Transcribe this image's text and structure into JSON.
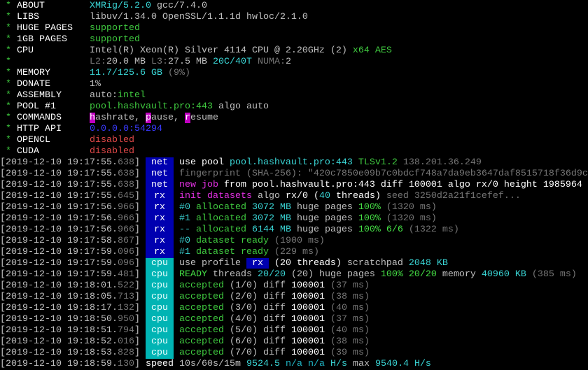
{
  "colors": {
    "tag_blue": "#0000b0",
    "tag_cyan": "#00b4b4",
    "cyan": "#3ad6d6",
    "green": "#3fc93f",
    "magenta": "#e030e0",
    "red": "#e04848",
    "gray": "#767676"
  },
  "header": [
    {
      "label": "ABOUT",
      "segs": [
        {
          "t": "XMRig/5.2.0",
          "c": "c"
        },
        {
          "t": " gcc/7.4.0",
          "c": "w"
        }
      ]
    },
    {
      "label": "LIBS",
      "segs": [
        {
          "t": "libuv/1.34.0 OpenSSL/1.1.1d hwloc/2.1.0",
          "c": "w"
        }
      ]
    },
    {
      "label": "HUGE PAGES",
      "segs": [
        {
          "t": "supported",
          "c": "g"
        }
      ]
    },
    {
      "label": "1GB PAGES",
      "segs": [
        {
          "t": "supported",
          "c": "g"
        }
      ]
    },
    {
      "label": "CPU",
      "segs": [
        {
          "t": "Intel(R) Xeon(R) Silver 4114 CPU @ 2.20GHz (2)",
          "c": "w"
        },
        {
          "t": " x64 AES",
          "c": "g"
        }
      ]
    },
    {
      "label": "",
      "segs": [
        {
          "t": "L2:",
          "c": "gr"
        },
        {
          "t": "20.0 MB ",
          "c": "w"
        },
        {
          "t": "L3:",
          "c": "gr"
        },
        {
          "t": "27.5 MB ",
          "c": "w"
        },
        {
          "t": "20C/40T",
          "c": "c"
        },
        {
          "t": " NUMA:",
          "c": "gr"
        },
        {
          "t": "2",
          "c": "w"
        }
      ]
    },
    {
      "label": "MEMORY",
      "segs": [
        {
          "t": "11.7/125.6 GB",
          "c": "c"
        },
        {
          "t": " (9%)",
          "c": "gr"
        }
      ]
    },
    {
      "label": "DONATE",
      "segs": [
        {
          "t": "1%",
          "c": "w"
        }
      ]
    },
    {
      "label": "ASSEMBLY",
      "segs": [
        {
          "t": "auto:",
          "c": "w"
        },
        {
          "t": "intel",
          "c": "g"
        }
      ]
    },
    {
      "label": "POOL #1",
      "segs": [
        {
          "t": "pool.hashvault.pro:443",
          "c": "g"
        },
        {
          "t": " algo auto",
          "c": "w"
        }
      ]
    },
    {
      "label": "COMMANDS",
      "segs": [
        {
          "t": "h",
          "c": "mbg"
        },
        {
          "t": "ashrate, ",
          "c": "w"
        },
        {
          "t": "p",
          "c": "mbg"
        },
        {
          "t": "ause, ",
          "c": "w"
        },
        {
          "t": "r",
          "c": "mbg"
        },
        {
          "t": "esume",
          "c": "w"
        }
      ]
    },
    {
      "label": "HTTP API",
      "segs": [
        {
          "t": "0.0.0.0:54294",
          "c": "b"
        }
      ]
    },
    {
      "label": "OPENCL",
      "segs": [
        {
          "t": "disabled",
          "c": "r"
        }
      ]
    },
    {
      "label": "CUDA",
      "segs": [
        {
          "t": "disabled",
          "c": "r"
        }
      ]
    }
  ],
  "log": [
    {
      "ts": "[2019-12-10 19:17:55.",
      "ms": "638",
      "tag": "net",
      "segs": [
        {
          "t": "use pool ",
          "c": "W"
        },
        {
          "t": "pool.hashvault.pro:443 ",
          "c": "c"
        },
        {
          "t": "TLSv1.2 ",
          "c": "g"
        },
        {
          "t": "138.201.36.249",
          "c": "gr"
        }
      ]
    },
    {
      "ts": "[2019-12-10 19:17:55.",
      "ms": "638",
      "tag": "net",
      "segs": [
        {
          "t": "fingerprint (SHA-256): \"420c7850e09b7c0bdcf748a7da9eb3647daf8515718f36d9c",
          "c": "gr"
        }
      ]
    },
    {
      "ts": "[2019-12-10 19:17:55.",
      "ms": "638",
      "tag": "net",
      "segs": [
        {
          "t": "new job",
          "c": "m"
        },
        {
          "t": " from pool.hashvault.pro:443 diff 100001 algo rx/0 height 1985964",
          "c": "W"
        }
      ]
    },
    {
      "ts": "[2019-12-10 19:17:55.",
      "ms": "645",
      "tag": "rx",
      "segs": [
        {
          "t": "init datasets",
          "c": "m"
        },
        {
          "t": " algo ",
          "c": "w"
        },
        {
          "t": "rx/0 (",
          "c": "W"
        },
        {
          "t": "40",
          "c": "c"
        },
        {
          "t": " threads)",
          "c": "W"
        },
        {
          "t": " seed 3250d2a21f1cefef...",
          "c": "gr"
        }
      ]
    },
    {
      "ts": "[2019-12-10 19:17:56.",
      "ms": "966",
      "tag": "rx",
      "segs": [
        {
          "t": "#0",
          "c": "c"
        },
        {
          "t": " allocated ",
          "c": "g"
        },
        {
          "t": "3072 MB",
          "c": "c"
        },
        {
          "t": " huge pages ",
          "c": "w"
        },
        {
          "t": "100%",
          "c": "G"
        },
        {
          "t": " (1320 ms)",
          "c": "gr"
        }
      ]
    },
    {
      "ts": "[2019-12-10 19:17:56.",
      "ms": "966",
      "tag": "rx",
      "segs": [
        {
          "t": "#1",
          "c": "c"
        },
        {
          "t": " allocated ",
          "c": "g"
        },
        {
          "t": "3072 MB",
          "c": "c"
        },
        {
          "t": " huge pages ",
          "c": "w"
        },
        {
          "t": "100%",
          "c": "G"
        },
        {
          "t": " (1320 ms)",
          "c": "gr"
        }
      ]
    },
    {
      "ts": "[2019-12-10 19:17:56.",
      "ms": "966",
      "tag": "rx",
      "segs": [
        {
          "t": "--",
          "c": "c"
        },
        {
          "t": " allocated ",
          "c": "g"
        },
        {
          "t": "6144 MB",
          "c": "c"
        },
        {
          "t": " huge pages ",
          "c": "w"
        },
        {
          "t": "100% 6/6",
          "c": "G"
        },
        {
          "t": " (1322 ms)",
          "c": "gr"
        }
      ]
    },
    {
      "ts": "[2019-12-10 19:17:58.",
      "ms": "867",
      "tag": "rx",
      "segs": [
        {
          "t": "#0",
          "c": "c"
        },
        {
          "t": " dataset ready",
          "c": "g"
        },
        {
          "t": " (1900 ms)",
          "c": "gr"
        }
      ]
    },
    {
      "ts": "[2019-12-10 19:17:59.",
      "ms": "096",
      "tag": "rx",
      "segs": [
        {
          "t": "#1",
          "c": "c"
        },
        {
          "t": " dataset ready",
          "c": "g"
        },
        {
          "t": " (229 ms)",
          "c": "gr"
        }
      ]
    },
    {
      "ts": "[2019-12-10 19:17:59.",
      "ms": "096",
      "tag": "cpu",
      "segs": [
        {
          "t": "use profile ",
          "c": "w"
        },
        {
          "t": " rx ",
          "c": "bbg"
        },
        {
          "t": " (20 threads)",
          "c": "W"
        },
        {
          "t": " scratchpad ",
          "c": "w"
        },
        {
          "t": "2048 KB",
          "c": "c"
        }
      ]
    },
    {
      "ts": "[2019-12-10 19:17:59.",
      "ms": "481",
      "tag": "cpu",
      "segs": [
        {
          "t": "READY",
          "c": "G"
        },
        {
          "t": " threads ",
          "c": "w"
        },
        {
          "t": "20/20",
          "c": "c"
        },
        {
          "t": " (20)",
          "c": "w"
        },
        {
          "t": " huge pages ",
          "c": "w"
        },
        {
          "t": "100% 20/20",
          "c": "G"
        },
        {
          "t": " memory ",
          "c": "w"
        },
        {
          "t": "40960 KB",
          "c": "c"
        },
        {
          "t": " (385 ms)",
          "c": "gr"
        }
      ]
    },
    {
      "ts": "[2019-12-10 19:18:01.",
      "ms": "522",
      "tag": "cpu",
      "segs": [
        {
          "t": "accepted",
          "c": "g"
        },
        {
          "t": " (1/0) diff ",
          "c": "w"
        },
        {
          "t": "100001",
          "c": "W"
        },
        {
          "t": " (37 ms)",
          "c": "gr"
        }
      ]
    },
    {
      "ts": "[2019-12-10 19:18:05.",
      "ms": "713",
      "tag": "cpu",
      "segs": [
        {
          "t": "accepted",
          "c": "g"
        },
        {
          "t": " (2/0) diff ",
          "c": "w"
        },
        {
          "t": "100001",
          "c": "W"
        },
        {
          "t": " (38 ms)",
          "c": "gr"
        }
      ]
    },
    {
      "ts": "[2019-12-10 19:18:17.",
      "ms": "132",
      "tag": "cpu",
      "segs": [
        {
          "t": "accepted",
          "c": "g"
        },
        {
          "t": " (3/0) diff ",
          "c": "w"
        },
        {
          "t": "100001",
          "c": "W"
        },
        {
          "t": " (40 ms)",
          "c": "gr"
        }
      ]
    },
    {
      "ts": "[2019-12-10 19:18:50.",
      "ms": "950",
      "tag": "cpu",
      "segs": [
        {
          "t": "accepted",
          "c": "g"
        },
        {
          "t": " (4/0) diff ",
          "c": "w"
        },
        {
          "t": "100001",
          "c": "W"
        },
        {
          "t": " (37 ms)",
          "c": "gr"
        }
      ]
    },
    {
      "ts": "[2019-12-10 19:18:51.",
      "ms": "794",
      "tag": "cpu",
      "segs": [
        {
          "t": "accepted",
          "c": "g"
        },
        {
          "t": " (5/0) diff ",
          "c": "w"
        },
        {
          "t": "100001",
          "c": "W"
        },
        {
          "t": " (40 ms)",
          "c": "gr"
        }
      ]
    },
    {
      "ts": "[2019-12-10 19:18:52.",
      "ms": "016",
      "tag": "cpu",
      "segs": [
        {
          "t": "accepted",
          "c": "g"
        },
        {
          "t": " (6/0) diff ",
          "c": "w"
        },
        {
          "t": "100001",
          "c": "W"
        },
        {
          "t": " (38 ms)",
          "c": "gr"
        }
      ]
    },
    {
      "ts": "[2019-12-10 19:18:53.",
      "ms": "828",
      "tag": "cpu",
      "segs": [
        {
          "t": "accepted",
          "c": "g"
        },
        {
          "t": " (7/0) diff ",
          "c": "w"
        },
        {
          "t": "100001",
          "c": "W"
        },
        {
          "t": " (39 ms)",
          "c": "gr"
        }
      ]
    },
    {
      "ts": "[2019-12-10 19:18:59.",
      "ms": "130",
      "tag": "",
      "segs": [
        {
          "t": "speed ",
          "c": "W"
        },
        {
          "t": "10s/60s/15m ",
          "c": "w"
        },
        {
          "t": "9524.5",
          "c": "c"
        },
        {
          "t": " n/a n/a",
          "c": "C"
        },
        {
          "t": " H/s",
          "c": "c"
        },
        {
          "t": " max ",
          "c": "w"
        },
        {
          "t": "9540.4 H/s",
          "c": "c"
        }
      ]
    }
  ]
}
